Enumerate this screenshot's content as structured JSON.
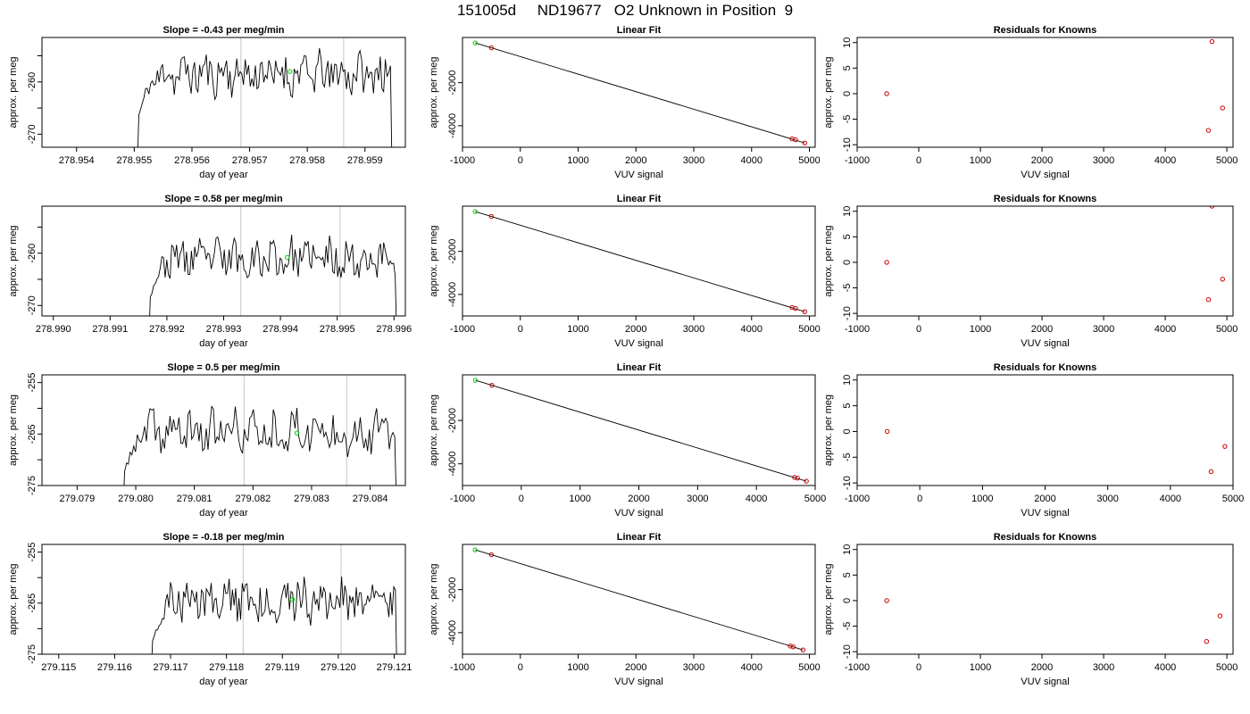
{
  "title": "151005d     ND19677   O2 Unknown in Position  9",
  "chart_data": [
    {
      "row": 1,
      "panels": [
        {
          "type": "line",
          "title": "Slope =  -0.43  per meg/min",
          "xlabel": "day of year",
          "ylabel": "approx. per meg",
          "xlim": [
            278.9534,
            278.9597
          ],
          "ylim": [
            -272.5,
            -251.5
          ],
          "xticks": [
            278.954,
            278.955,
            278.956,
            278.957,
            278.958,
            278.959
          ],
          "xtick_labels": [
            "278.954",
            "278.955",
            "278.956",
            "278.957",
            "278.958",
            "278.959"
          ],
          "yticks": [
            -270,
            -265,
            -260,
            -255
          ],
          "ytick_labels": [
            "-270",
            "",
            "-260",
            ""
          ],
          "vlines": [
            278.95685,
            278.95863
          ],
          "trace": {
            "x_start": 278.95505,
            "x_end": 278.95947,
            "baseline": -258.5,
            "amplitude": 2.2,
            "seed": 11
          },
          "marker": {
            "x": 278.9577,
            "y": -258.0,
            "color": "#00cc00"
          }
        },
        {
          "type": "scatter",
          "title": "Linear Fit",
          "xlabel": "VUV signal",
          "ylabel": "approx. per meg",
          "xlim": [
            -1000,
            5100
          ],
          "ylim": [
            -5000,
            100
          ],
          "xticks": [
            -1000,
            0,
            1000,
            2000,
            3000,
            4000,
            5000
          ],
          "xtick_labels": [
            "-1000",
            "0",
            "1000",
            "2000",
            "3000",
            "4000",
            "5000"
          ],
          "yticks": [
            -4000,
            -2000
          ],
          "ytick_labels": [
            "-4000",
            "-2000"
          ],
          "fit_line": [
            [
              -780,
              -150
            ],
            [
              4920,
              -4800
            ]
          ],
          "points": [
            {
              "x": -780,
              "y": -150,
              "color": "#00cc00"
            },
            {
              "x": -500,
              "y": -380,
              "color": "#cc0000"
            },
            {
              "x": 4700,
              "y": -4610,
              "color": "#cc0000"
            },
            {
              "x": 4760,
              "y": -4650,
              "color": "#cc0000"
            },
            {
              "x": 4920,
              "y": -4800,
              "color": "#cc0000"
            }
          ]
        },
        {
          "type": "scatter",
          "title": "Residuals for Knowns",
          "xlabel": "VUV signal",
          "ylabel": "approx. per meg",
          "xlim": [
            -1000,
            5100
          ],
          "ylim": [
            -10.5,
            11
          ],
          "xticks": [
            -1000,
            0,
            1000,
            2000,
            3000,
            4000,
            5000
          ],
          "xtick_labels": [
            "-1000",
            "0",
            "1000",
            "2000",
            "3000",
            "4000",
            "5000"
          ],
          "yticks": [
            -10,
            -5,
            0,
            5,
            10
          ],
          "ytick_labels": [
            "-10",
            "-5",
            "0",
            "5",
            "10"
          ],
          "points": [
            {
              "x": -520,
              "y": 0,
              "color": "#cc0000"
            },
            {
              "x": 4760,
              "y": 10.2,
              "color": "#cc0000"
            },
            {
              "x": 4700,
              "y": -7.2,
              "color": "#cc0000"
            },
            {
              "x": 4930,
              "y": -2.8,
              "color": "#cc0000"
            }
          ]
        }
      ]
    },
    {
      "row": 2,
      "panels": [
        {
          "type": "line",
          "title": "Slope =  0.58  per meg/min",
          "xlabel": "day of year",
          "ylabel": "approx. per meg",
          "xlim": [
            278.9898,
            278.9962
          ],
          "ylim": [
            -272.0,
            -251.0
          ],
          "xticks": [
            278.99,
            278.991,
            278.992,
            278.993,
            278.994,
            278.995,
            278.996
          ],
          "xtick_labels": [
            "278.990",
            "278.991",
            "278.992",
            "278.993",
            "278.994",
            "278.995",
            "278.996"
          ],
          "yticks": [
            -270,
            -265,
            -260,
            -255
          ],
          "ytick_labels": [
            "-270",
            "",
            "-260",
            ""
          ],
          "vlines": [
            278.9933,
            278.99505
          ],
          "trace": {
            "x_start": 278.99168,
            "x_end": 278.99605,
            "baseline": -261.0,
            "amplitude": 2.0,
            "seed": 23
          },
          "marker": {
            "x": 278.99412,
            "y": -260.8,
            "color": "#00cc00"
          }
        },
        {
          "type": "scatter",
          "title": "Linear Fit",
          "xlabel": "VUV signal",
          "ylabel": "approx. per meg",
          "xlim": [
            -1000,
            5100
          ],
          "ylim": [
            -5000,
            100
          ],
          "xticks": [
            -1000,
            0,
            1000,
            2000,
            3000,
            4000,
            5000
          ],
          "xtick_labels": [
            "-1000",
            "0",
            "1000",
            "2000",
            "3000",
            "4000",
            "5000"
          ],
          "yticks": [
            -4000,
            -2000
          ],
          "ytick_labels": [
            "-4000",
            "-2000"
          ],
          "fit_line": [
            [
              -780,
              -150
            ],
            [
              4920,
              -4800
            ]
          ],
          "points": [
            {
              "x": -780,
              "y": -150,
              "color": "#00cc00"
            },
            {
              "x": -500,
              "y": -380,
              "color": "#cc0000"
            },
            {
              "x": 4700,
              "y": -4610,
              "color": "#cc0000"
            },
            {
              "x": 4760,
              "y": -4650,
              "color": "#cc0000"
            },
            {
              "x": 4920,
              "y": -4800,
              "color": "#cc0000"
            }
          ]
        },
        {
          "type": "scatter",
          "title": "Residuals for Knowns",
          "xlabel": "VUV signal",
          "ylabel": "approx. per meg",
          "xlim": [
            -1000,
            5100
          ],
          "ylim": [
            -10.5,
            11
          ],
          "xticks": [
            -1000,
            0,
            1000,
            2000,
            3000,
            4000,
            5000
          ],
          "xtick_labels": [
            "-1000",
            "0",
            "1000",
            "2000",
            "3000",
            "4000",
            "5000"
          ],
          "yticks": [
            -10,
            -5,
            0,
            5,
            10
          ],
          "ytick_labels": [
            "-10",
            "-5",
            "0",
            "5",
            "10"
          ],
          "points": [
            {
              "x": -520,
              "y": 0,
              "color": "#cc0000"
            },
            {
              "x": 4760,
              "y": 11.0,
              "color": "#cc0000"
            },
            {
              "x": 4700,
              "y": -7.3,
              "color": "#cc0000"
            },
            {
              "x": 4930,
              "y": -3.3,
              "color": "#cc0000"
            }
          ]
        }
      ]
    },
    {
      "row": 3,
      "panels": [
        {
          "type": "line",
          "title": "Slope =  0.5  per meg/min",
          "xlabel": "day of year",
          "ylabel": "approx. per meg",
          "xlim": [
            279.0784,
            279.0846
          ],
          "ylim": [
            -275.0,
            -253.5
          ],
          "xticks": [
            279.079,
            279.08,
            279.081,
            279.082,
            279.083,
            279.084
          ],
          "xtick_labels": [
            "279.079",
            "279.080",
            "279.081",
            "279.082",
            "279.083",
            "279.084"
          ],
          "yticks": [
            -275,
            -270,
            -265,
            -260,
            -255
          ],
          "ytick_labels": [
            "-275",
            "",
            "-265",
            "",
            "-255"
          ],
          "vlines": [
            279.08185,
            279.0836
          ],
          "trace": {
            "x_start": 279.07978,
            "x_end": 279.08445,
            "baseline": -264.5,
            "amplitude": 2.2,
            "seed": 37
          },
          "marker": {
            "x": 279.08275,
            "y": -264.8,
            "color": "#00cc00"
          }
        },
        {
          "type": "scatter",
          "title": "Linear Fit",
          "xlabel": "VUV signal",
          "ylabel": "approx. per meg",
          "xlim": [
            -1000,
            5000
          ],
          "ylim": [
            -5000,
            100
          ],
          "xticks": [
            -1000,
            0,
            1000,
            2000,
            3000,
            4000,
            5000
          ],
          "xtick_labels": [
            "-1000",
            "0",
            "1000",
            "2000",
            "3000",
            "4000",
            "5000"
          ],
          "yticks": [
            -4000,
            -2000
          ],
          "ytick_labels": [
            "-4000",
            "-2000"
          ],
          "fit_line": [
            [
              -780,
              -150
            ],
            [
              4850,
              -4800
            ]
          ],
          "points": [
            {
              "x": -780,
              "y": -150,
              "color": "#00cc00"
            },
            {
              "x": -500,
              "y": -380,
              "color": "#cc0000"
            },
            {
              "x": 4650,
              "y": -4630,
              "color": "#cc0000"
            },
            {
              "x": 4700,
              "y": -4660,
              "color": "#cc0000"
            },
            {
              "x": 4850,
              "y": -4800,
              "color": "#cc0000"
            }
          ]
        },
        {
          "type": "scatter",
          "title": "Residuals for Knowns",
          "xlabel": "VUV signal",
          "ylabel": "approx. per meg",
          "xlim": [
            -1000,
            5000
          ],
          "ylim": [
            -10.5,
            11
          ],
          "xticks": [
            -1000,
            0,
            1000,
            2000,
            3000,
            4000,
            5000
          ],
          "xtick_labels": [
            "-1000",
            "0",
            "1000",
            "2000",
            "3000",
            "4000",
            "5000"
          ],
          "yticks": [
            -10,
            -5,
            0,
            5,
            10
          ],
          "ytick_labels": [
            "-10",
            "-5",
            "0",
            "5",
            "10"
          ],
          "points": [
            {
              "x": -520,
              "y": 0,
              "color": "#cc0000"
            },
            {
              "x": 4650,
              "y": -7.8,
              "color": "#cc0000"
            },
            {
              "x": 4870,
              "y": -2.9,
              "color": "#cc0000"
            }
          ]
        }
      ]
    },
    {
      "row": 4,
      "panels": [
        {
          "type": "line",
          "title": "Slope =  -0.18  per meg/min",
          "xlabel": "day of year",
          "ylabel": "approx. per meg",
          "xlim": [
            279.1147,
            279.1212
          ],
          "ylim": [
            -275.0,
            -253.5
          ],
          "xticks": [
            279.115,
            279.116,
            279.117,
            279.118,
            279.119,
            279.12,
            279.121
          ],
          "xtick_labels": [
            "279.115",
            "279.116",
            "279.117",
            "279.118",
            "279.119",
            "279.120",
            "279.121"
          ],
          "yticks": [
            -275,
            -270,
            -265,
            -260,
            -255
          ],
          "ytick_labels": [
            "-275",
            "",
            "-265",
            "",
            "-255"
          ],
          "vlines": [
            279.1183,
            279.12005
          ],
          "trace": {
            "x_start": 279.11665,
            "x_end": 279.12105,
            "baseline": -264.5,
            "amplitude": 2.2,
            "seed": 51
          },
          "marker": {
            "x": 279.11918,
            "y": -264.3,
            "color": "#00cc00"
          }
        },
        {
          "type": "scatter",
          "title": "Linear Fit",
          "xlabel": "VUV signal",
          "ylabel": "approx. per meg",
          "xlim": [
            -1000,
            5100
          ],
          "ylim": [
            -5000,
            100
          ],
          "xticks": [
            -1000,
            0,
            1000,
            2000,
            3000,
            4000,
            5000
          ],
          "xtick_labels": [
            "-1000",
            "0",
            "1000",
            "2000",
            "3000",
            "4000",
            "5000"
          ],
          "yticks": [
            -4000,
            -2000
          ],
          "ytick_labels": [
            "-4000",
            "-2000"
          ],
          "fit_line": [
            [
              -780,
              -150
            ],
            [
              4890,
              -4800
            ]
          ],
          "points": [
            {
              "x": -780,
              "y": -150,
              "color": "#00cc00"
            },
            {
              "x": -500,
              "y": -380,
              "color": "#cc0000"
            },
            {
              "x": 4670,
              "y": -4620,
              "color": "#cc0000"
            },
            {
              "x": 4720,
              "y": -4660,
              "color": "#cc0000"
            },
            {
              "x": 4890,
              "y": -4800,
              "color": "#cc0000"
            }
          ]
        },
        {
          "type": "scatter",
          "title": "Residuals for Knowns",
          "xlabel": "VUV signal",
          "ylabel": "approx. per meg",
          "xlim": [
            -1000,
            5100
          ],
          "ylim": [
            -10.5,
            11
          ],
          "xticks": [
            -1000,
            0,
            1000,
            2000,
            3000,
            4000,
            5000
          ],
          "xtick_labels": [
            "-1000",
            "0",
            "1000",
            "2000",
            "3000",
            "4000",
            "5000"
          ],
          "yticks": [
            -10,
            -5,
            0,
            5,
            10
          ],
          "ytick_labels": [
            "-10",
            "-5",
            "0",
            "5",
            "10"
          ],
          "points": [
            {
              "x": -520,
              "y": 0,
              "color": "#cc0000"
            },
            {
              "x": 4670,
              "y": -8.0,
              "color": "#cc0000"
            },
            {
              "x": 4890,
              "y": -3.0,
              "color": "#cc0000"
            }
          ]
        }
      ]
    }
  ]
}
